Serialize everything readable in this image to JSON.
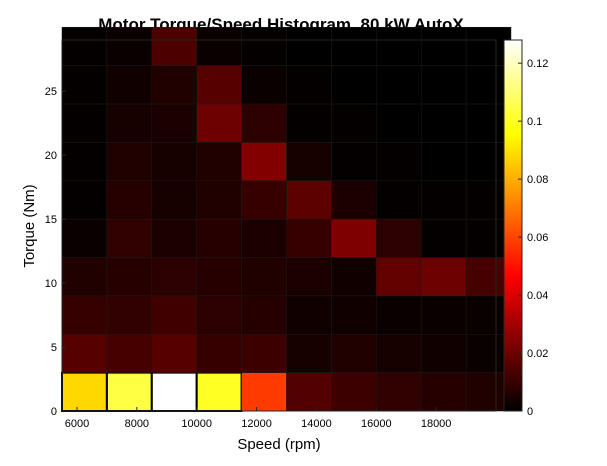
{
  "chart_data": {
    "type": "heatmap",
    "title": "Motor Torque/Speed Histogram, 80 kW AutoX",
    "xlabel": "Speed (rpm)",
    "ylabel": "Torque (Nm)",
    "x_ticks": [
      "6000",
      "8000",
      "10000",
      "12000",
      "14000",
      "16000",
      "18000"
    ],
    "y_ticks": [
      "0",
      "5",
      "10",
      "15",
      "20",
      "25"
    ],
    "colorbar_ticks": [
      "0",
      "0.02",
      "0.04",
      "0.06",
      "0.08",
      "0.1",
      "0.12"
    ],
    "colorbar_range": [
      0,
      0.128
    ],
    "colormap": "hot",
    "x_range": [
      5500,
      20000
    ],
    "y_range": [
      0,
      29
    ],
    "speed_bin_starts": [
      5500,
      7000,
      8500,
      10000,
      11500,
      13000,
      14500,
      16000,
      17500,
      19000
    ],
    "speed_bin_width": 1500,
    "torque_bin_starts": [
      0,
      3,
      6,
      9,
      12,
      15,
      18,
      21,
      24,
      27
    ],
    "torque_bin_width": 3,
    "values": [
      [
        0.088,
        0.104,
        0.128,
        0.1,
        0.058,
        0.015,
        0.011,
        0.009,
        0.007,
        0.006
      ],
      [
        0.016,
        0.013,
        0.016,
        0.01,
        0.011,
        0.004,
        0.006,
        0.004,
        0.003,
        0.002
      ],
      [
        0.01,
        0.009,
        0.012,
        0.008,
        0.007,
        0.003,
        0.003,
        0.002,
        0.002,
        0.002
      ],
      [
        0.006,
        0.007,
        0.008,
        0.007,
        0.006,
        0.005,
        0.003,
        0.018,
        0.02,
        0.013
      ],
      [
        0.002,
        0.009,
        0.005,
        0.007,
        0.005,
        0.01,
        0.023,
        0.008,
        0.001,
        0.001
      ],
      [
        0.001,
        0.007,
        0.004,
        0.006,
        0.01,
        0.017,
        0.005,
        0.001,
        0.001,
        0.001
      ],
      [
        0.001,
        0.006,
        0.004,
        0.006,
        0.024,
        0.004,
        0.001,
        0.001,
        0.0,
        0.0
      ],
      [
        0.001,
        0.004,
        0.005,
        0.02,
        0.008,
        0.001,
        0.001,
        0.0,
        0.0,
        0.0
      ],
      [
        0.001,
        0.003,
        0.006,
        0.016,
        0.002,
        0.001,
        0.0,
        0.0,
        0.0,
        0.0
      ],
      [
        0.001,
        0.002,
        0.014,
        0.002,
        0.001,
        0.0,
        0.0,
        0.0,
        0.0,
        0.0
      ]
    ],
    "highlighted_cells": [
      [
        0,
        0
      ],
      [
        0,
        1
      ],
      [
        0,
        2
      ],
      [
        0,
        3
      ]
    ],
    "grid": false,
    "legend": "none"
  }
}
